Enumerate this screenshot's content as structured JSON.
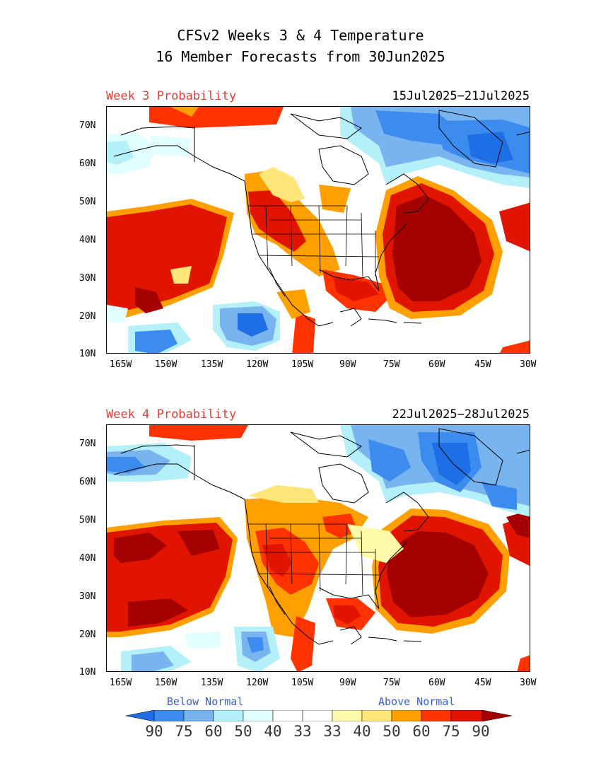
{
  "title": {
    "line1": "CFSv2 Weeks 3 & 4 Temperature",
    "line2": "16 Member Forecasts from 30Jun2025"
  },
  "panels": [
    {
      "label": "Week 3 Probability",
      "dates": "15Jul2025−21Jul2025"
    },
    {
      "label": "Week 4 Probability",
      "dates": "22Jul2025−28Jul2025"
    }
  ],
  "axes": {
    "lat_labels": [
      "70N",
      "60N",
      "50N",
      "40N",
      "30N",
      "20N",
      "10N"
    ],
    "lon_labels": [
      "165W",
      "150W",
      "135W",
      "120W",
      "105W",
      "90W",
      "75W",
      "60W",
      "45W",
      "30W"
    ],
    "lat_range": [
      10,
      75
    ],
    "lon_range": [
      -168,
      -30
    ]
  },
  "legend": {
    "below_label": "Below Normal",
    "above_label": "Above Normal",
    "values": [
      "90",
      "75",
      "60",
      "50",
      "40",
      "33",
      "33",
      "40",
      "50",
      "60",
      "75",
      "90"
    ],
    "colors": [
      "#1e6ee6",
      "#3c8cf0",
      "#78b4f0",
      "#b4f0fa",
      "#e1ffff",
      "#ffffff",
      "#fffaaa",
      "#ffe678",
      "#ffa000",
      "#ff3200",
      "#e11400",
      "#a50000"
    ]
  },
  "colors": {
    "above_90": "#a50000",
    "above_75": "#e11400",
    "above_60": "#ff3200",
    "above_50": "#ffa000",
    "above_40": "#ffe678",
    "above_33": "#fffaaa",
    "below_40": "#e1ffff",
    "below_50": "#b4f0fa",
    "below_60": "#78b4f0",
    "below_75": "#3c8cf0",
    "below_90": "#1e6ee6"
  }
}
